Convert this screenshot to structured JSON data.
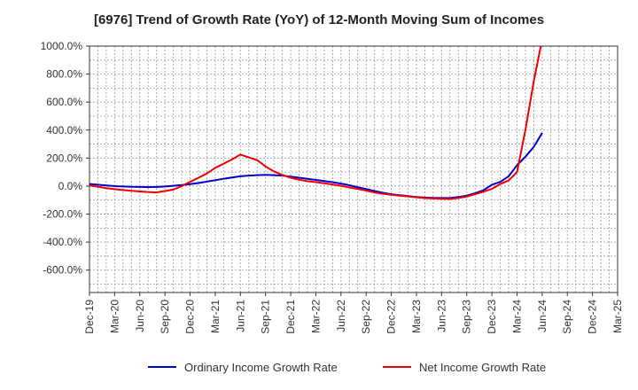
{
  "chart_data": {
    "type": "line",
    "title": "[6976]  Trend of Growth Rate (YoY) of 12-Month Moving Sum of Incomes",
    "y_ticks": [
      "1000.0%",
      "800.0%",
      "600.0%",
      "400.0%",
      "200.0%",
      "0.0%",
      "-200.0%",
      "-400.0%",
      "-600.0%"
    ],
    "ylim": [
      -760,
      1000
    ],
    "x_ticks": [
      "Dec-19",
      "Mar-20",
      "Jun-20",
      "Sep-20",
      "Dec-20",
      "Mar-21",
      "Jun-21",
      "Sep-21",
      "Dec-21",
      "Mar-22",
      "Jun-22",
      "Sep-22",
      "Dec-22",
      "Mar-23",
      "Jun-23",
      "Sep-23",
      "Dec-23",
      "Mar-24",
      "Jun-24",
      "Sep-24",
      "Dec-24",
      "Mar-25"
    ],
    "x_start": "2019-12",
    "grid": true,
    "legend_position": "bottom",
    "series": [
      {
        "name": "Ordinary Income Growth Rate",
        "color": "#0000cc",
        "values": [
          15,
          10,
          5,
          0,
          -3,
          -5,
          -6,
          -7,
          -6,
          -3,
          2,
          8,
          14,
          22,
          32,
          42,
          52,
          62,
          70,
          75,
          78,
          80,
          78,
          75,
          68,
          60,
          52,
          44,
          36,
          28,
          18,
          6,
          -8,
          -22,
          -35,
          -48,
          -58,
          -65,
          -72,
          -78,
          -82,
          -84,
          -85,
          -85,
          -78,
          -68,
          -50,
          -30,
          10,
          30,
          70,
          150,
          210,
          280,
          380
        ]
      },
      {
        "name": "Net Income Growth Rate",
        "color": "#ee0000",
        "values": [
          5,
          -5,
          -15,
          -22,
          -28,
          -34,
          -38,
          -42,
          -45,
          -35,
          -25,
          0,
          30,
          60,
          90,
          130,
          160,
          190,
          225,
          205,
          185,
          140,
          105,
          80,
          60,
          45,
          35,
          28,
          20,
          12,
          2,
          -10,
          -20,
          -32,
          -45,
          -55,
          -62,
          -68,
          -74,
          -80,
          -86,
          -88,
          -90,
          -92,
          -85,
          -75,
          -58,
          -40,
          -20,
          15,
          40,
          100,
          400,
          750,
          1050
        ]
      }
    ]
  }
}
